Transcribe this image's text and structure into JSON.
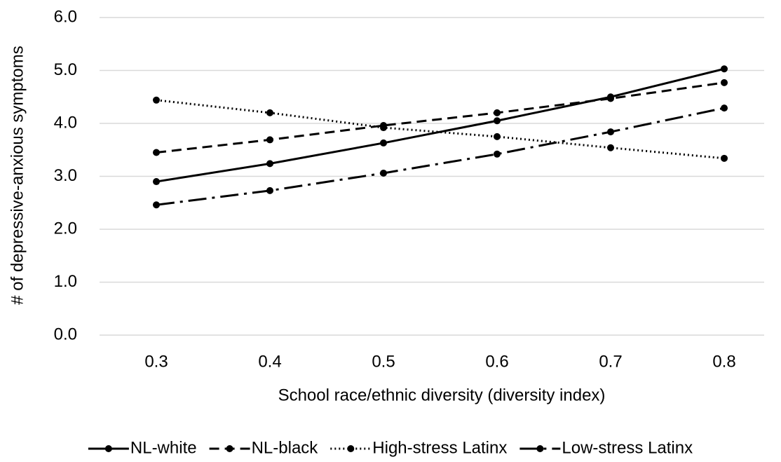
{
  "chart_data": {
    "type": "line",
    "x_label": "School race/ethnic diversity (diversity index)",
    "y_label": "# of depressive-anxious symptoms",
    "categories": [
      "0.3",
      "0.4",
      "0.5",
      "0.6",
      "0.7",
      "0.8"
    ],
    "ylim": [
      0,
      6
    ],
    "yticks": [
      {
        "value": 0,
        "label": "0.0"
      },
      {
        "value": 1,
        "label": "1.0"
      },
      {
        "value": 2,
        "label": "2.0"
      },
      {
        "value": 3,
        "label": "3.0"
      },
      {
        "value": 4,
        "label": "4.0"
      },
      {
        "value": 5,
        "label": "5.0"
      },
      {
        "value": 6,
        "label": "6.0"
      }
    ],
    "grid": true,
    "legend": "bottom",
    "series": [
      {
        "name": "NL-white",
        "color": "#000000",
        "line_style": "solid",
        "values": [
          2.9,
          3.24,
          3.63,
          4.05,
          4.5,
          5.03
        ]
      },
      {
        "name": "NL-black",
        "color": "#000000",
        "line_style": "dashed",
        "values": [
          3.45,
          3.69,
          3.96,
          4.2,
          4.47,
          4.77
        ]
      },
      {
        "name": "High-stress Latinx",
        "color": "#000000",
        "line_style": "dotted",
        "values": [
          4.44,
          4.2,
          3.92,
          3.75,
          3.54,
          3.34
        ]
      },
      {
        "name": "Low-stress Latinx",
        "color": "#000000",
        "line_style": "dash-dot",
        "values": [
          2.46,
          2.73,
          3.06,
          3.42,
          3.84,
          4.29
        ]
      }
    ]
  }
}
